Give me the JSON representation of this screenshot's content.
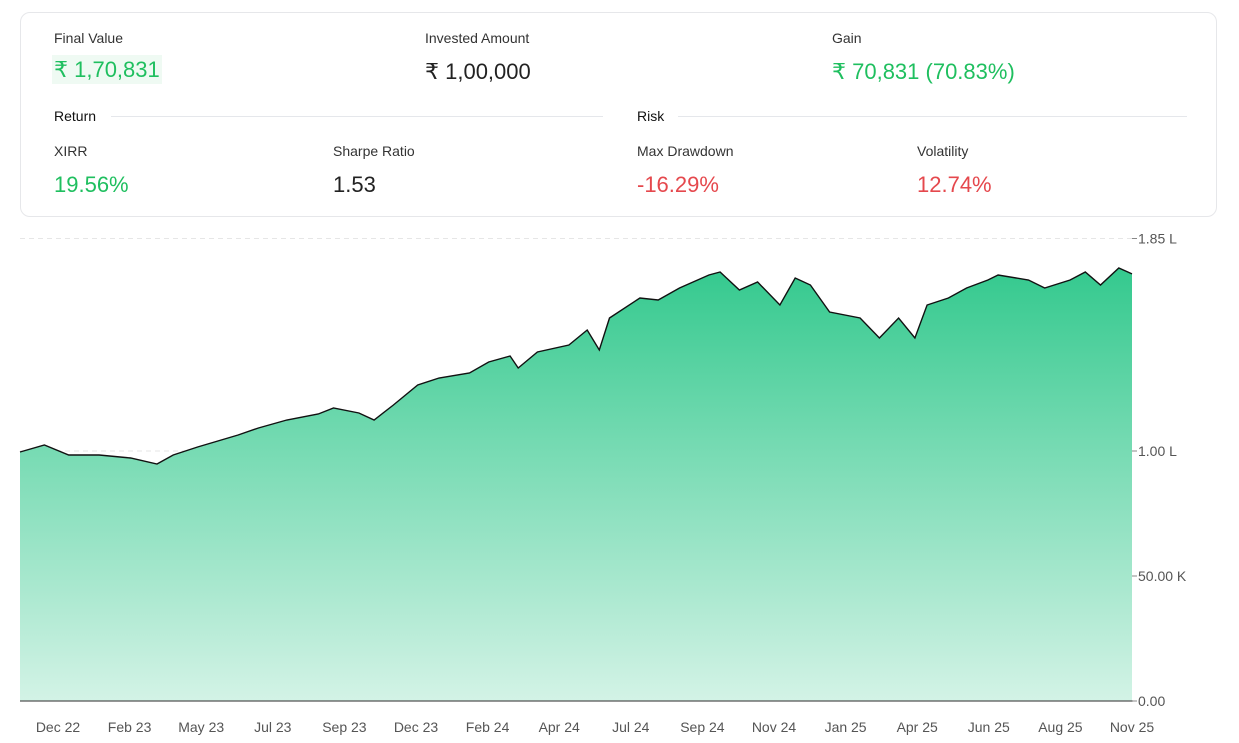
{
  "summary": {
    "final_value_label": "Final Value",
    "final_value": "₹ 1,70,831",
    "invested_label": "Invested Amount",
    "invested": "₹ 1,00,000",
    "gain_label": "Gain",
    "gain": "₹ 70,831 (70.83%)"
  },
  "return": {
    "title": "Return",
    "xirr_label": "XIRR",
    "xirr": "19.56%",
    "sharpe_label": "Sharpe Ratio",
    "sharpe": "1.53"
  },
  "risk": {
    "title": "Risk",
    "drawdown_label": "Max Drawdown",
    "drawdown": "-16.29%",
    "volatility_label": "Volatility",
    "volatility": "12.74%"
  },
  "colors": {
    "positive": "#1fbf5f",
    "negative": "#e5484d",
    "area_top": "#34c98e",
    "area_bottom": "#d3f3e6",
    "line": "#111111"
  },
  "chart_data": {
    "type": "area",
    "ylim": [
      0,
      185000
    ],
    "y_ticks": [
      {
        "value": 0,
        "label": "0.00"
      },
      {
        "value": 50000,
        "label": "50.00 K"
      },
      {
        "value": 100000,
        "label": "1.00 L"
      },
      {
        "value": 185000,
        "label": "1.85 L"
      }
    ],
    "x_ticks": [
      "Dec 22",
      "Feb 23",
      "May 23",
      "Jul 23",
      "Sep 23",
      "Dec 23",
      "Feb 24",
      "Apr 24",
      "Jul 24",
      "Sep 24",
      "Nov 24",
      "Jan 25",
      "Apr 25",
      "Jun 25",
      "Aug 25",
      "Nov 25"
    ],
    "grid": true,
    "x": [
      "2022-11-01",
      "2022-11-25",
      "2022-12-19",
      "2023-01-18",
      "2023-02-18",
      "2023-03-16",
      "2023-04-01",
      "2023-04-25",
      "2023-06-04",
      "2023-06-24",
      "2023-07-22",
      "2023-08-22",
      "2023-09-06",
      "2023-10-01",
      "2023-10-16",
      "2023-11-04",
      "2023-11-28",
      "2023-12-19",
      "2024-01-18",
      "2024-02-06",
      "2024-02-27",
      "2024-03-06",
      "2024-03-25",
      "2024-04-25",
      "2024-05-13",
      "2024-05-25",
      "2024-06-04",
      "2024-07-04",
      "2024-07-22",
      "2024-08-12",
      "2024-09-10",
      "2024-09-21",
      "2024-10-10",
      "2024-10-28",
      "2024-11-19",
      "2024-12-04",
      "2024-12-19",
      "2025-01-07",
      "2025-02-06",
      "2025-02-25",
      "2025-03-16",
      "2025-04-01",
      "2025-04-13",
      "2025-05-04",
      "2025-05-22",
      "2025-06-12",
      "2025-06-22",
      "2025-07-22",
      "2025-08-07",
      "2025-09-01",
      "2025-09-16",
      "2025-10-01",
      "2025-10-19",
      "2025-11-01"
    ],
    "values": [
      99600,
      102400,
      98400,
      98400,
      97200,
      94800,
      98400,
      101600,
      106400,
      109200,
      112400,
      114800,
      117200,
      115200,
      112400,
      118400,
      126400,
      129200,
      131200,
      135600,
      138000,
      133200,
      139600,
      142400,
      148400,
      140400,
      153200,
      161200,
      160400,
      165200,
      170400,
      171600,
      164400,
      167600,
      158400,
      169200,
      166400,
      155600,
      153200,
      145200,
      153200,
      145200,
      158400,
      161200,
      165200,
      168400,
      170400,
      168400,
      165200,
      168400,
      171600,
      166400,
      173200,
      170831
    ]
  }
}
